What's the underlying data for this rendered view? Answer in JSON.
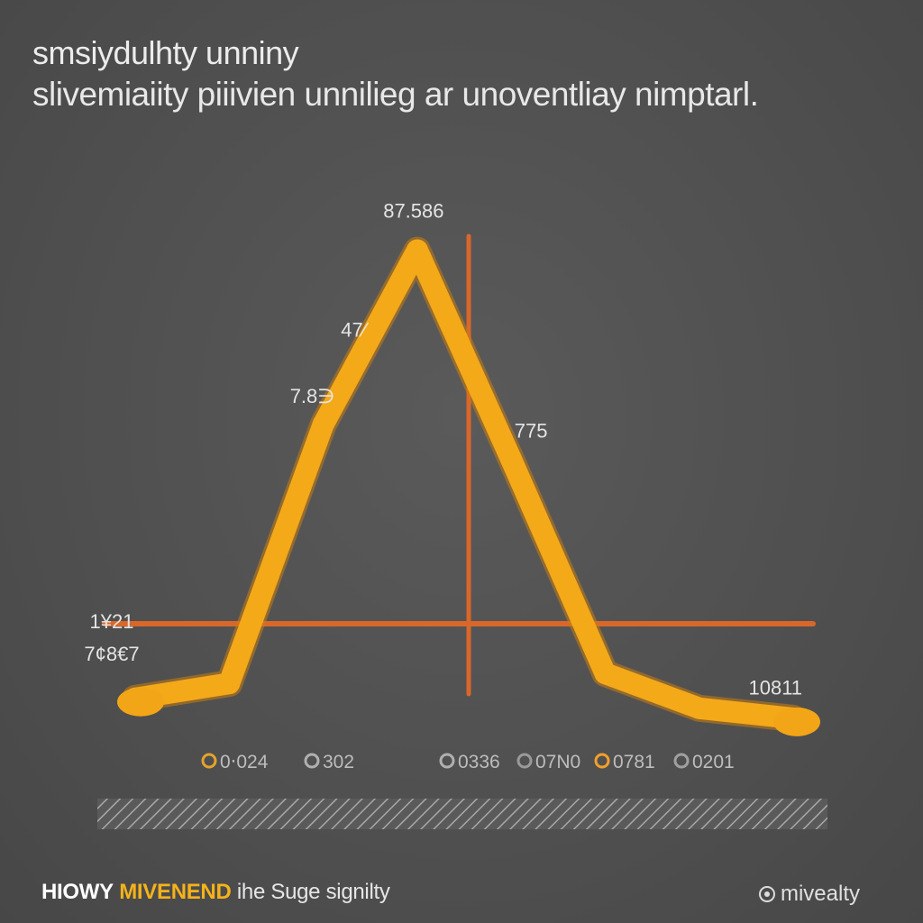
{
  "chart_data": {
    "type": "line",
    "title": "smsiydulhty unniny",
    "subtitle": "slivemiaiity piiivien unnilieg ar unoventliay nimptarl.",
    "x": [
      0,
      1,
      2,
      3,
      4,
      5,
      6,
      7
    ],
    "series": [
      {
        "values": [
          1.0,
          1.3,
          6.5,
          10.0,
          5.8,
          1.5,
          0.8,
          0.6
        ]
      }
    ],
    "ylim": [
      0,
      10.5
    ],
    "point_labels": [
      {
        "index": 0,
        "lines": [
          "1¥21",
          "7¢8€7"
        ]
      },
      {
        "index": 2,
        "lines": [
          "7.8∋"
        ]
      },
      {
        "index": 2.4,
        "lines": [
          "47⁄"
        ]
      },
      {
        "index": 3,
        "lines": [
          "87.586"
        ]
      },
      {
        "index": 4,
        "lines": [
          "775"
        ]
      },
      {
        "index": 6.6,
        "lines": [
          "10811"
        ]
      }
    ],
    "legend": [
      {
        "label": "0‧024",
        "color": "#e4a22e"
      },
      {
        "label": "302",
        "color": "#b0b0b0"
      },
      {
        "label": "0336",
        "color": "#b0b0b0"
      },
      {
        "label": "07N0",
        "color": "#9a9a9a"
      },
      {
        "label": "0781",
        "color": "#f2a02a"
      },
      {
        "label": "0201",
        "color": "#a0a0a0"
      }
    ],
    "line_color": "#f4a919",
    "axis_color": "#d9672a",
    "grid": false
  },
  "footer": {
    "part1": "HIOWY",
    "part2": "MIVENEND",
    "part3": "ihe Suge signilty",
    "brand": "mivealty",
    "brand_icon": "copyright-icon"
  }
}
